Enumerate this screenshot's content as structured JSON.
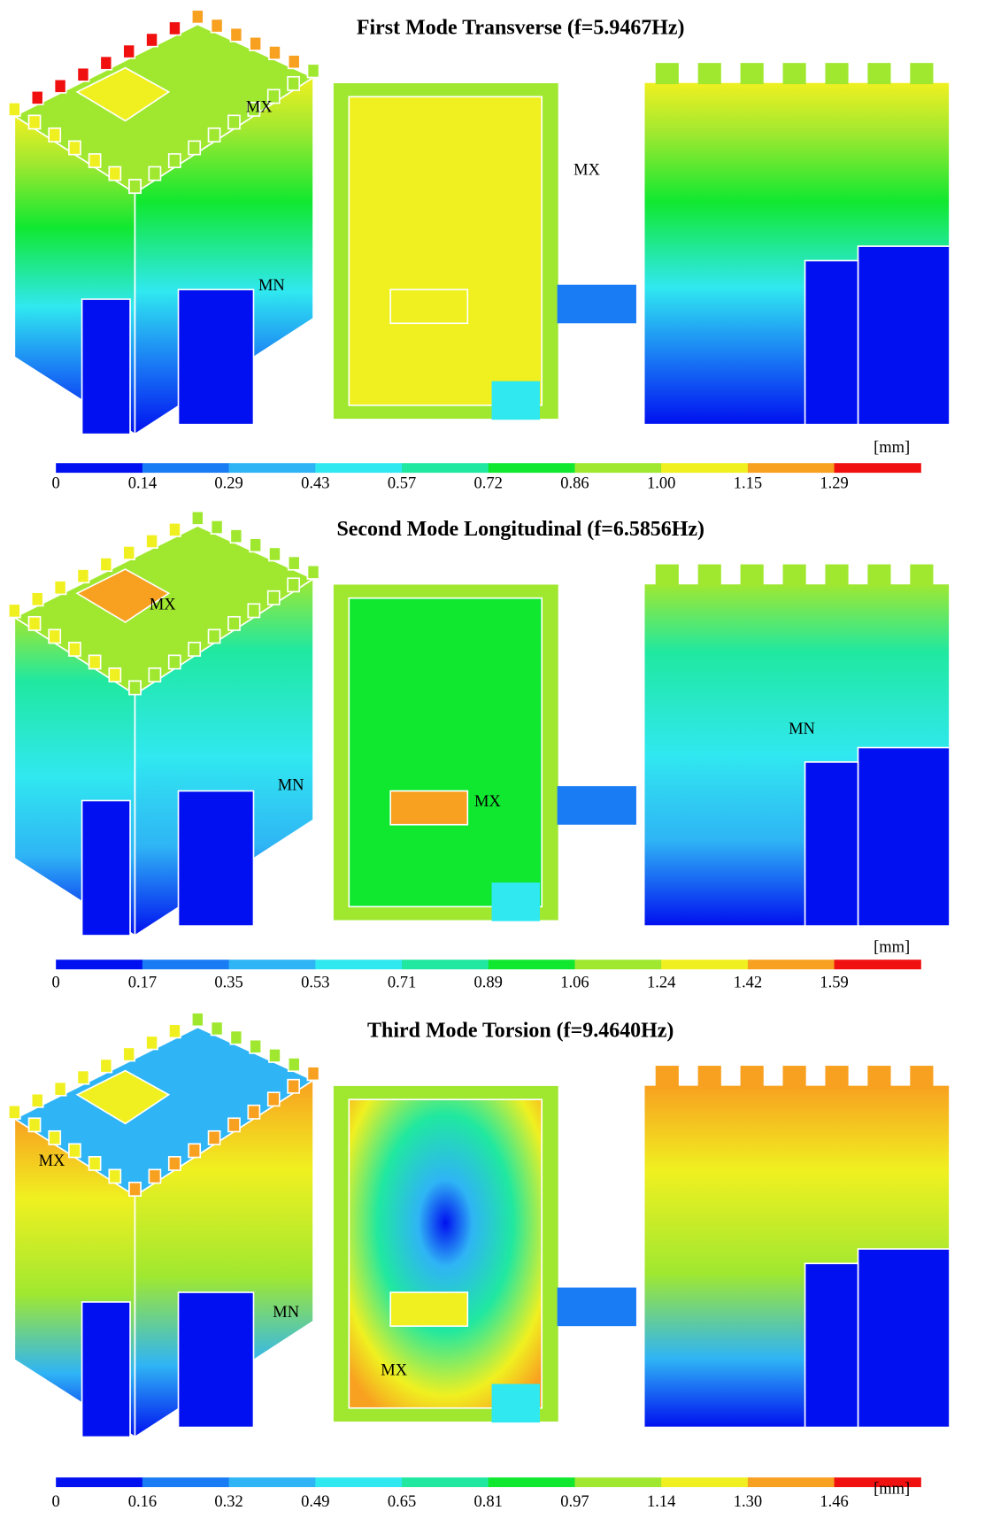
{
  "panels": [
    {
      "title": "First Mode Transverse (f=5.9467Hz)",
      "labels": [
        "MX",
        "MX",
        "MN"
      ],
      "colorbar": {
        "unit": "[mm]",
        "ticks": [
          "0",
          "0.14",
          "0.29",
          "0.43",
          "0.57",
          "0.72",
          "0.86",
          "1.00",
          "1.15",
          "1.29"
        ]
      }
    },
    {
      "title": "Second Mode Longitudinal (f=6.5856Hz)",
      "labels": [
        "MX",
        "MN",
        "MX",
        "MN"
      ],
      "colorbar": {
        "unit": "[mm]",
        "ticks": [
          "0",
          "0.17",
          "0.35",
          "0.53",
          "0.71",
          "0.89",
          "1.06",
          "1.24",
          "1.42",
          "1.59"
        ]
      }
    },
    {
      "title": "Third Mode Torsion (f=9.4640Hz)",
      "labels": [
        "MX",
        "MN",
        "MX"
      ],
      "colorbar": {
        "unit": "[mm]",
        "ticks": [
          "0",
          "0.16",
          "0.32",
          "0.49",
          "0.65",
          "0.81",
          "0.97",
          "1.14",
          "1.30",
          "1.46"
        ]
      }
    }
  ]
}
